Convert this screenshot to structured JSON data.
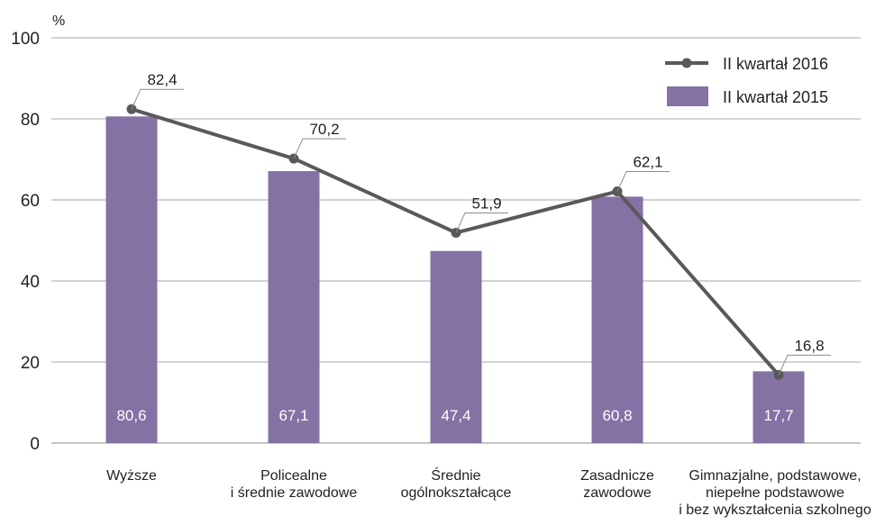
{
  "chart_data": {
    "type": "bar",
    "unit": "%",
    "ylim": [
      0,
      100
    ],
    "yticks": [
      "0",
      "20",
      "40",
      "60",
      "80",
      "100"
    ],
    "grid": true,
    "legend_position": "top-right",
    "categories": [
      [
        "Wyższe"
      ],
      [
        "Policealne",
        "i średnie zawodowe"
      ],
      [
        "Średnie",
        "ogólnokształcące"
      ],
      [
        "Zasadnicze",
        "zawodowe"
      ],
      [
        "Gimnazjalne, podstawowe,",
        "niepełne podstawowe",
        "i bez wykształcenia szkolnego"
      ]
    ],
    "series": [
      {
        "name": "II kwartał 2015",
        "type": "bar",
        "color": "#8472a4",
        "values": [
          80.6,
          67.1,
          47.4,
          60.8,
          17.7
        ],
        "labels": [
          "80,6",
          "67,1",
          "47,4",
          "60,8",
          "17,7"
        ]
      },
      {
        "name": "II kwartał 2016",
        "type": "line",
        "color": "#595959",
        "values": [
          82.4,
          70.2,
          51.9,
          62.1,
          16.8
        ],
        "labels": [
          "82,4",
          "70,2",
          "51,9",
          "62,1",
          "16,8"
        ]
      }
    ]
  }
}
